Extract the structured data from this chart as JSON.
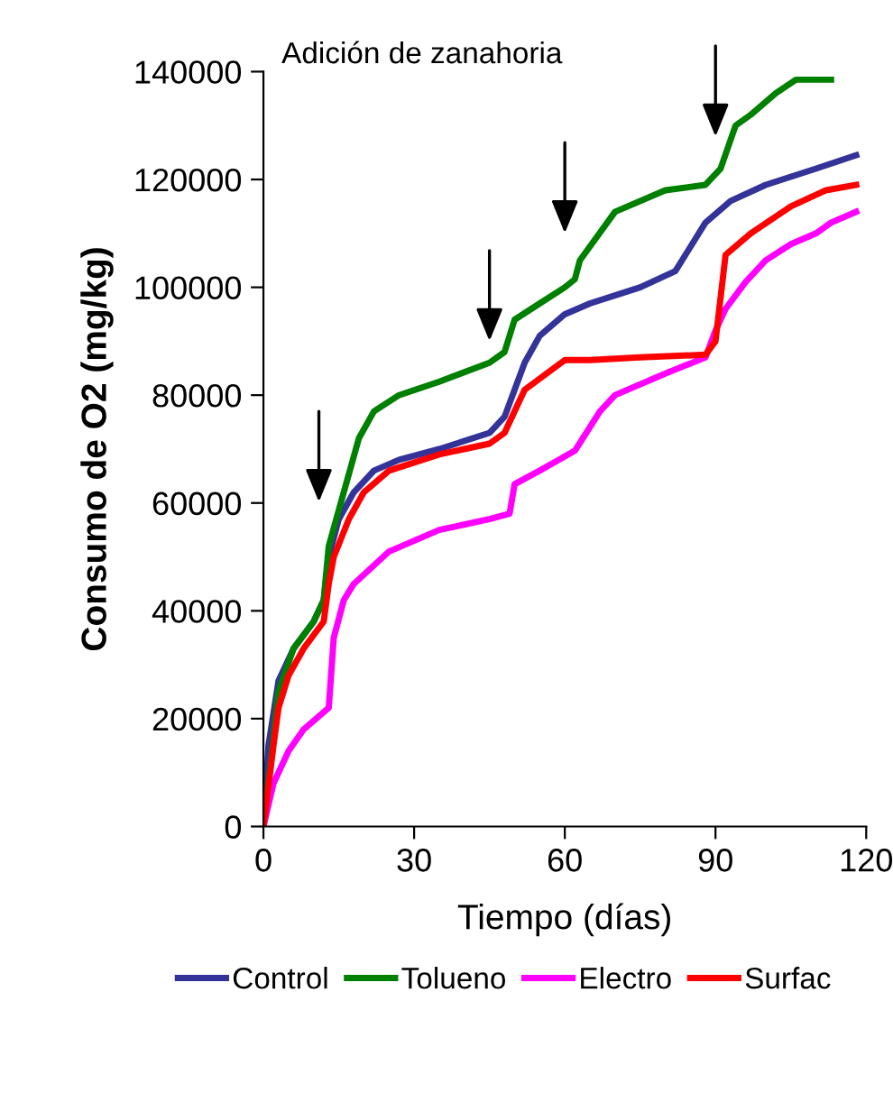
{
  "chart_data": {
    "type": "line",
    "xlabel": "Tiempo (días)",
    "ylabel": "Consumo de O2 (mg/kg)",
    "xlim": [
      0,
      120
    ],
    "xticks": [
      0,
      30,
      60,
      90,
      120
    ],
    "ylim": [
      0,
      140000
    ],
    "yticks": [
      0,
      20000,
      40000,
      60000,
      80000,
      100000,
      120000,
      140000
    ],
    "grid": false,
    "legend": "bottom",
    "marker": "none",
    "line_style": "solid",
    "annotations": [
      "Adición de zanahoria"
    ],
    "series": [
      {
        "name": "Control",
        "color": "#333399",
        "x": [
          0,
          1,
          3,
          6,
          10,
          12,
          13,
          15,
          18,
          22,
          27,
          35,
          45,
          48,
          50,
          52,
          55,
          60,
          65,
          75,
          82,
          84,
          88,
          93,
          100,
          110,
          118
        ],
        "values": [
          0,
          15000,
          27000,
          33000,
          38000,
          42000,
          50000,
          57000,
          62000,
          66000,
          68000,
          70000,
          73000,
          76000,
          81000,
          86000,
          91000,
          95000,
          97000,
          100000,
          103000,
          106000,
          112000,
          116000,
          119000,
          122000,
          124500
        ]
      },
      {
        "name": "Tolueno",
        "color": "#008000",
        "x": [
          0,
          3,
          6,
          10,
          12,
          13,
          16,
          19,
          22,
          27,
          35,
          45,
          48,
          50,
          55,
          60,
          62,
          63,
          70,
          80,
          88,
          91,
          94,
          97,
          102,
          106,
          113
        ],
        "values": [
          0,
          25000,
          33000,
          38000,
          42000,
          52000,
          62000,
          72000,
          77000,
          80000,
          82500,
          86000,
          88000,
          94000,
          97000,
          100000,
          101500,
          105000,
          114000,
          118000,
          119000,
          122000,
          130000,
          132000,
          136000,
          138500,
          138500
        ]
      },
      {
        "name": "Electro",
        "color": "#ff00ff",
        "x": [
          0,
          2,
          5,
          8,
          13,
          14,
          16,
          18,
          25,
          35,
          45,
          49,
          50,
          55,
          62,
          67,
          70,
          80,
          88,
          90,
          92,
          96,
          100,
          105,
          110,
          113,
          118
        ],
        "values": [
          0,
          8000,
          14000,
          18000,
          22000,
          35000,
          42000,
          45000,
          51000,
          55000,
          57000,
          58000,
          63500,
          66000,
          69700,
          77000,
          80000,
          84000,
          87000,
          92000,
          96000,
          101000,
          105000,
          108000,
          110000,
          112000,
          114000
        ]
      },
      {
        "name": "Surfac",
        "color": "#ff0000",
        "x": [
          0,
          2,
          3,
          5,
          8,
          12,
          13,
          14,
          17,
          20,
          25,
          35,
          45,
          48,
          52,
          60,
          65,
          75,
          88,
          90,
          92,
          97,
          105,
          112,
          118
        ],
        "values": [
          0,
          15000,
          22000,
          28000,
          33000,
          38000,
          45000,
          50000,
          57000,
          62000,
          66000,
          69000,
          71000,
          73000,
          81000,
          86500,
          86500,
          87000,
          87500,
          90000,
          106000,
          110000,
          115000,
          118000,
          119000
        ]
      }
    ]
  }
}
